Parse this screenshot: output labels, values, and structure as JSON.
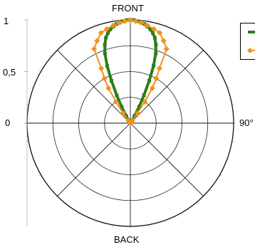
{
  "chart_data": {
    "type": "polar-line",
    "labels": {
      "top": "FRONT",
      "bottom": "BACK",
      "right": "90°"
    },
    "r_ticks": [
      {
        "value": 1,
        "label": "1"
      },
      {
        "value": 0.5,
        "label": "0,5"
      },
      {
        "value": 0,
        "label": "0"
      }
    ],
    "rlim": [
      0,
      1
    ],
    "angle_zero": "top",
    "spokes_deg": [
      0,
      45,
      90,
      135,
      180,
      225,
      270,
      315
    ],
    "rings": [
      0.25,
      0.5,
      0.75,
      1.0
    ],
    "legend_placement": "top-right",
    "series": [
      {
        "color": "#2e7d1a",
        "marker": "square",
        "points": [
          [
            0,
            1.0
          ],
          [
            2,
            1.0
          ],
          [
            4,
            0.99
          ],
          [
            6,
            0.98
          ],
          [
            8,
            0.97
          ],
          [
            10,
            0.95
          ],
          [
            12,
            0.93
          ],
          [
            14,
            0.9
          ],
          [
            16,
            0.86
          ],
          [
            18,
            0.8
          ],
          [
            20,
            0.72
          ],
          [
            22,
            0.6
          ],
          [
            24,
            0.45
          ],
          [
            26,
            0.3
          ],
          [
            28,
            0.18
          ],
          [
            30,
            0.08
          ],
          [
            32,
            0.03
          ],
          [
            36,
            0.01
          ],
          [
            180,
            0.0
          ],
          [
            324,
            0.01
          ],
          [
            328,
            0.03
          ],
          [
            330,
            0.08
          ],
          [
            332,
            0.18
          ],
          [
            334,
            0.3
          ],
          [
            336,
            0.45
          ],
          [
            338,
            0.6
          ],
          [
            340,
            0.72
          ],
          [
            342,
            0.8
          ],
          [
            344,
            0.86
          ],
          [
            346,
            0.9
          ],
          [
            348,
            0.93
          ],
          [
            350,
            0.95
          ],
          [
            352,
            0.97
          ],
          [
            354,
            0.98
          ],
          [
            356,
            0.99
          ],
          [
            358,
            1.0
          ]
        ]
      },
      {
        "color": "#f0921e",
        "marker": "diamond",
        "points": [
          [
            0,
            1.0
          ],
          [
            3,
            0.99
          ],
          [
            6,
            0.98
          ],
          [
            10,
            0.96
          ],
          [
            14,
            0.94
          ],
          [
            18,
            0.92
          ],
          [
            22,
            0.86
          ],
          [
            26,
            0.8
          ],
          [
            28,
            0.6
          ],
          [
            30,
            0.5
          ],
          [
            32,
            0.4
          ],
          [
            34,
            0.25
          ],
          [
            36,
            0.12
          ],
          [
            40,
            0.03
          ],
          [
            180,
            0.0
          ],
          [
            320,
            0.03
          ],
          [
            324,
            0.12
          ],
          [
            326,
            0.25
          ],
          [
            328,
            0.4
          ],
          [
            330,
            0.5
          ],
          [
            332,
            0.6
          ],
          [
            334,
            0.8
          ],
          [
            338,
            0.86
          ],
          [
            342,
            0.92
          ],
          [
            346,
            0.94
          ],
          [
            350,
            0.96
          ],
          [
            354,
            0.98
          ],
          [
            357,
            0.99
          ]
        ]
      }
    ]
  }
}
